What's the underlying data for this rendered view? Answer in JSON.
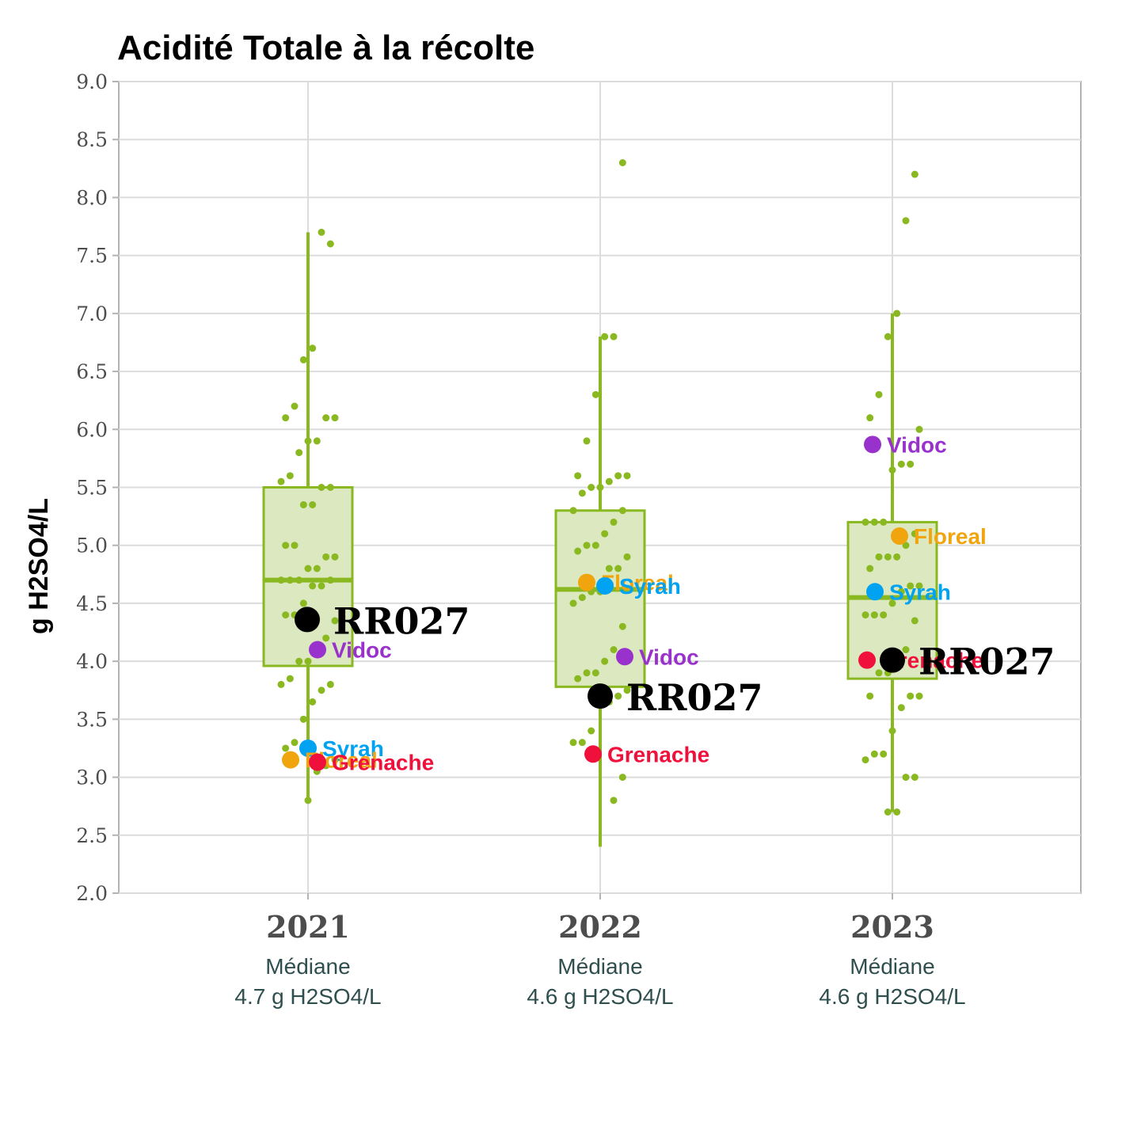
{
  "chart_data": {
    "type": "box",
    "title": "Acidité Totale à la récolte",
    "ylabel": "g H2SO4/L",
    "xlabel": "",
    "ylim": [
      2.0,
      9.0
    ],
    "yticks": [
      "2.0",
      "2.5",
      "3.0",
      "3.5",
      "4.0",
      "4.5",
      "5.0",
      "5.5",
      "6.0",
      "6.5",
      "7.0",
      "7.5",
      "8.0",
      "8.5",
      "9.0"
    ],
    "grid": true,
    "colors": {
      "box": "#8ab820",
      "box_fill": "#dce9c0",
      "Vidoc": "#9932cc",
      "Syrah": "#00a2f2",
      "Floreal": "#f0a50f",
      "Grenache": "#f0103c",
      "reference": "#000000"
    },
    "categories": [
      "2021",
      "2022",
      "2023"
    ],
    "boxes": [
      {
        "category": "2021",
        "whisker_low": 2.8,
        "q1": 3.96,
        "median": 4.7,
        "q3": 5.5,
        "whisker_high": 7.7
      },
      {
        "category": "2022",
        "whisker_low": 2.4,
        "q1": 3.78,
        "median": 4.62,
        "q3": 5.3,
        "whisker_high": 6.8
      },
      {
        "category": "2023",
        "whisker_low": 2.7,
        "q1": 3.85,
        "median": 4.55,
        "q3": 5.2,
        "whisker_high": 7.0
      }
    ],
    "median_labels": [
      {
        "category": "2021",
        "line1": "Médiane",
        "line2": "4.7 g H2SO4/L"
      },
      {
        "category": "2022",
        "line1": "Médiane",
        "line2": "4.6 g H2SO4/L"
      },
      {
        "category": "2023",
        "line1": "Médiane",
        "line2": "4.6 g H2SO4/L"
      }
    ],
    "points": [
      {
        "category": "2021",
        "values": [
          7.6,
          7.7,
          6.7,
          6.6,
          6.2,
          6.1,
          6.1,
          6.1,
          5.9,
          5.9,
          5.8,
          5.6,
          5.55,
          5.5,
          5.5,
          5.35,
          5.35,
          5.0,
          5.0,
          4.9,
          4.9,
          4.8,
          4.8,
          4.7,
          4.7,
          4.7,
          4.7,
          4.65,
          4.65,
          4.5,
          4.4,
          4.4,
          4.35,
          4.2,
          4.1,
          4.0,
          4.0,
          3.85,
          3.8,
          3.8,
          3.75,
          3.65,
          3.5,
          3.3,
          3.25,
          3.15,
          3.1,
          3.05,
          2.8
        ]
      },
      {
        "category": "2022",
        "values": [
          8.3,
          6.8,
          6.8,
          6.3,
          5.9,
          5.6,
          5.6,
          5.6,
          5.55,
          5.5,
          5.5,
          5.45,
          5.3,
          5.3,
          5.2,
          5.1,
          5.0,
          5.0,
          4.95,
          4.9,
          4.8,
          4.8,
          4.6,
          4.6,
          4.55,
          4.5,
          4.3,
          4.1,
          4.0,
          3.9,
          3.9,
          3.85,
          3.75,
          3.7,
          3.65,
          3.65,
          3.4,
          3.3,
          3.3,
          3.0,
          2.8
        ]
      },
      {
        "category": "2023",
        "values": [
          8.2,
          7.8,
          7.0,
          6.8,
          6.3,
          6.1,
          6.0,
          5.7,
          5.7,
          5.65,
          5.2,
          5.2,
          5.2,
          5.1,
          5.0,
          4.9,
          4.9,
          4.9,
          4.8,
          4.65,
          4.65,
          4.6,
          4.5,
          4.4,
          4.4,
          4.4,
          4.35,
          4.1,
          4.0,
          3.9,
          3.9,
          3.7,
          3.7,
          3.7,
          3.6,
          3.4,
          3.2,
          3.2,
          3.15,
          3.0,
          3.0,
          2.7,
          2.7
        ]
      }
    ],
    "highlights": [
      {
        "category": "2021",
        "name": "RR027",
        "value": 4.36,
        "kind": "reference"
      },
      {
        "category": "2021",
        "name": "Vidoc",
        "value": 4.1
      },
      {
        "category": "2021",
        "name": "Syrah",
        "value": 3.25
      },
      {
        "category": "2021",
        "name": "Floreal",
        "value": 3.15
      },
      {
        "category": "2021",
        "name": "Grenache",
        "value": 3.13
      },
      {
        "category": "2022",
        "name": "Floreal",
        "value": 4.68
      },
      {
        "category": "2022",
        "name": "Syrah",
        "value": 4.65
      },
      {
        "category": "2022",
        "name": "Vidoc",
        "value": 4.04
      },
      {
        "category": "2022",
        "name": "RR027",
        "value": 3.7,
        "kind": "reference"
      },
      {
        "category": "2022",
        "name": "Grenache",
        "value": 3.2
      },
      {
        "category": "2023",
        "name": "Vidoc",
        "value": 5.87
      },
      {
        "category": "2023",
        "name": "Floreal",
        "value": 5.08
      },
      {
        "category": "2023",
        "name": "Syrah",
        "value": 4.6
      },
      {
        "category": "2023",
        "name": "Grenache",
        "value": 4.01
      },
      {
        "category": "2023",
        "name": "RR027",
        "value": 4.01,
        "kind": "reference"
      }
    ]
  }
}
